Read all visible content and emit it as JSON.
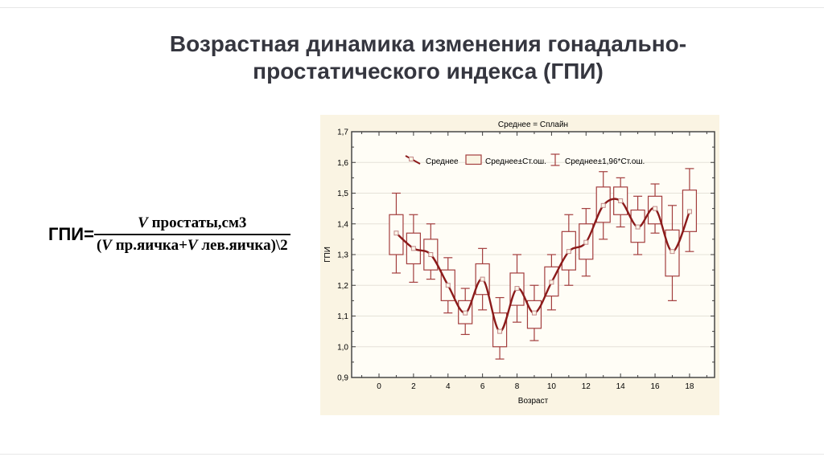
{
  "slide": {
    "title_line1": "Возрастная динамика изменения гонадально-",
    "title_line2": "простатического индекса (ГПИ)",
    "title_color": "#35363f"
  },
  "formula": {
    "lhs": "ГПИ=",
    "num_v": "V",
    "num_rest": " простаты,см3",
    "den_open": "(",
    "den_v1": "V",
    "den_mid": " пр.яичка+",
    "den_v2": "V",
    "den_rest": " лев.яичка)\\2"
  },
  "chart_data": {
    "type": "box-whisker-spline",
    "title": "Среднее = Сплайн",
    "xlabel": "Возраст",
    "ylabel": "ГПИ",
    "legend": [
      "Среднее",
      "Среднее±Ст.ош.",
      "Среднее±1,96*Ст.ош."
    ],
    "x_tick_labels": [
      0,
      2,
      4,
      6,
      8,
      10,
      12,
      14,
      16,
      18
    ],
    "y_tick_values": [
      1.7,
      1.6,
      1.5,
      1.4,
      1.3,
      1.2,
      1.1,
      1.0,
      0.9
    ],
    "y_tick_labels": [
      "1,7",
      "1,6",
      "1,5",
      "1,4",
      "1,3",
      "1,2",
      "1,1",
      "1,0",
      "0,9"
    ],
    "xlim": [
      -1.6,
      19.4
    ],
    "ylim": [
      0.9,
      1.7
    ],
    "grid": "horizontal-only",
    "legend_position": "top-inside",
    "ages": [
      1,
      2,
      3,
      4,
      5,
      6,
      7,
      8,
      9,
      10,
      11,
      12,
      13,
      14,
      15,
      16,
      17,
      18
    ],
    "mean": [
      1.37,
      1.32,
      1.3,
      1.2,
      1.11,
      1.22,
      1.05,
      1.19,
      1.11,
      1.21,
      1.31,
      1.34,
      1.46,
      1.475,
      1.39,
      1.45,
      1.31,
      1.44
    ],
    "box_low": [
      1.3,
      1.27,
      1.25,
      1.15,
      1.075,
      1.17,
      1.0,
      1.135,
      1.06,
      1.165,
      1.25,
      1.285,
      1.405,
      1.43,
      1.34,
      1.4,
      1.23,
      1.375
    ],
    "box_high": [
      1.43,
      1.37,
      1.35,
      1.25,
      1.15,
      1.27,
      1.11,
      1.24,
      1.15,
      1.26,
      1.375,
      1.4,
      1.52,
      1.52,
      1.445,
      1.49,
      1.38,
      1.51
    ],
    "whisker_low": [
      1.24,
      1.21,
      1.22,
      1.11,
      1.04,
      1.12,
      0.96,
      1.08,
      1.02,
      1.12,
      1.2,
      1.23,
      1.35,
      1.39,
      1.3,
      1.37,
      1.15,
      1.31
    ],
    "whisker_high": [
      1.5,
      1.43,
      1.4,
      1.29,
      1.19,
      1.32,
      1.16,
      1.3,
      1.2,
      1.3,
      1.43,
      1.45,
      1.57,
      1.55,
      1.49,
      1.53,
      1.46,
      1.58
    ],
    "colors": {
      "panel_bg": "#faf4e3",
      "plot_bg": "#fffdf6",
      "frame": "#3c3c3c",
      "grid": "#e5e2d8",
      "box": "#a33e3e",
      "spline": "#8b1a1a",
      "marker_stroke": "#c38989",
      "marker_fill": "#fcf7ea",
      "text": "#000000"
    }
  }
}
